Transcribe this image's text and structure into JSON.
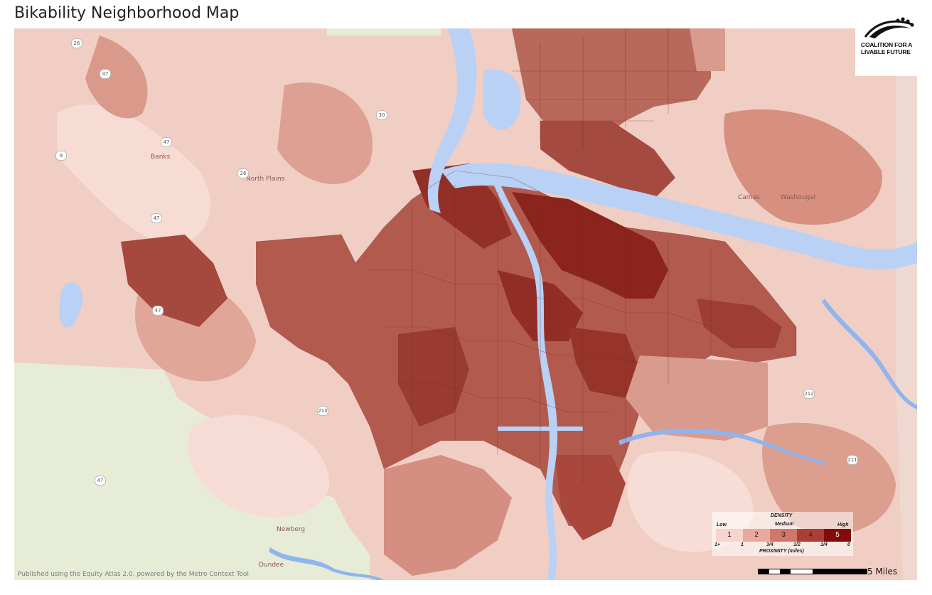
{
  "title": "Bikability Neighborhood Map",
  "logo": {
    "line1": "COALITION FOR A",
    "line2": "LIVABLE FUTURE"
  },
  "legend": {
    "density_label": "DENSITY",
    "low": "Low",
    "medium": "Medium",
    "high": "High",
    "classes": [
      "1",
      "2",
      "3",
      "4",
      "5"
    ],
    "class_colors": [
      "#f6d4cd",
      "#e9a99c",
      "#cf776a",
      "#ab3f35",
      "#830c0b"
    ],
    "proximity_ticks": [
      "1+",
      "1",
      "3/4",
      "1/2",
      "1/4",
      "0"
    ],
    "proximity_label": "PROXIMITY (miles)"
  },
  "places": {
    "banks": "Banks",
    "north_plains": "North Plains",
    "camas": "Camas",
    "washougal": "Washougal",
    "newberg": "Newberg",
    "dundee": "Dundee"
  },
  "route_shields": {
    "r26": "26",
    "r47a": "47",
    "r47b": "47",
    "r47c": "47",
    "r47d": "47",
    "r47e": "47",
    "r8": "8",
    "r30": "30",
    "r26b": "26",
    "r210": "210",
    "r212": "212",
    "r211": "211"
  },
  "credit": "Published using the Equity Atlas 2.0, powered by the Metro Context Tool",
  "scale": {
    "label": "5 Miles"
  },
  "colors": {
    "water": "#b8d1f5",
    "land_base": "#e8eed8",
    "low_density": "#f3d2c8"
  }
}
